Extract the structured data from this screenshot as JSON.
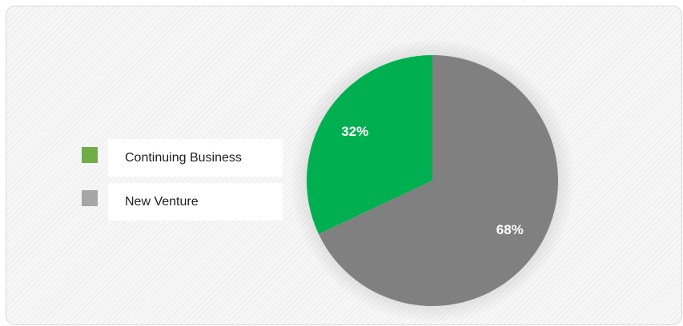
{
  "chart_data": {
    "type": "pie",
    "title": "",
    "legend_position": "left",
    "start_angle_deg": 0,
    "direction": "clockwise",
    "slices": [
      {
        "name": "New Venture",
        "value": 68,
        "label": "68%",
        "color": "#808080",
        "legend_color": "#a6a6a6"
      },
      {
        "name": "Continuing Business",
        "value": 32,
        "label": "32%",
        "color": "#00b050",
        "legend_color": "#70ad47"
      }
    ],
    "legend": [
      {
        "name": "Continuing Business",
        "color": "#70ad47"
      },
      {
        "name": "New Venture",
        "color": "#a6a6a6"
      }
    ]
  }
}
